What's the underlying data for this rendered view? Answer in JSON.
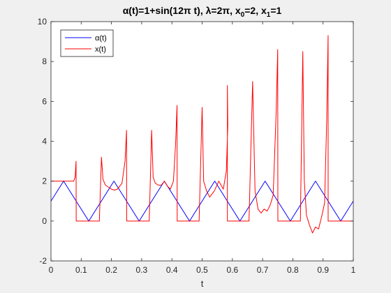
{
  "chart_data": {
    "type": "line",
    "title_parts": [
      {
        "text": "α",
        "italic": false
      },
      {
        "text": "(t)=1+sin(12",
        "italic": false
      },
      {
        "text": "π",
        "italic": false
      },
      {
        "text": " t), ",
        "italic": false
      },
      {
        "text": "λ",
        "italic": false
      },
      {
        "text": "=2",
        "italic": false
      },
      {
        "text": "π",
        "italic": false
      },
      {
        "text": ", x",
        "italic": false
      },
      {
        "text": "0",
        "sub": true
      },
      {
        "text": "=2, x",
        "italic": false
      },
      {
        "text": "1",
        "sub": true
      },
      {
        "text": "=1",
        "italic": false
      }
    ],
    "xlabel": "t",
    "ylabel": "",
    "xlim": [
      0,
      1
    ],
    "ylim": [
      -2,
      10
    ],
    "x_ticks": [
      0,
      0.1,
      0.2,
      0.3,
      0.4,
      0.5,
      0.6,
      0.7,
      0.8,
      0.9,
      1
    ],
    "x_tick_labels": [
      "0",
      "0.1",
      "0.2",
      "0.3",
      "0.4",
      "0.5",
      "0.6",
      "0.7",
      "0.8",
      "0.9",
      "1"
    ],
    "y_ticks": [
      -2,
      0,
      2,
      4,
      6,
      8,
      10
    ],
    "y_tick_labels": [
      "-2",
      "0",
      "2",
      "4",
      "6",
      "8",
      "10"
    ],
    "grid": false,
    "legend_placement": "top-left",
    "series": [
      {
        "name": "α(t)",
        "color": "#0000ff",
        "x": [
          0,
          0.0417,
          0.0833,
          0.125,
          0.1667,
          0.2083,
          0.25,
          0.2917,
          0.3333,
          0.375,
          0.4167,
          0.4583,
          0.5,
          0.5417,
          0.5833,
          0.625,
          0.6667,
          0.7083,
          0.75,
          0.7917,
          0.8333,
          0.875,
          0.9167,
          0.9583,
          1
        ],
        "y": [
          1,
          2,
          1,
          0,
          1,
          2,
          1,
          0,
          1,
          2,
          1,
          0,
          1,
          2,
          1,
          0,
          1,
          2,
          1,
          0,
          1,
          2,
          1,
          0,
          1
        ]
      },
      {
        "name": "x(t)",
        "color": "#ff0000",
        "x": [
          0,
          0.075,
          0.08,
          0.083,
          0.0835,
          0.09,
          0.125,
          0.16,
          0.167,
          0.172,
          0.18,
          0.19,
          0.2,
          0.21,
          0.22,
          0.235,
          0.245,
          0.25,
          0.2505,
          0.27,
          0.31,
          0.325,
          0.333,
          0.338,
          0.345,
          0.355,
          0.365,
          0.375,
          0.385,
          0.395,
          0.405,
          0.412,
          0.417,
          0.4175,
          0.45,
          0.49,
          0.5,
          0.505,
          0.515,
          0.525,
          0.54,
          0.555,
          0.57,
          0.58,
          0.585,
          0.5835,
          0.5836,
          0.6,
          0.64,
          0.655,
          0.667,
          0.675,
          0.685,
          0.695,
          0.705,
          0.715,
          0.725,
          0.735,
          0.745,
          0.75,
          0.7505,
          0.8,
          0.825,
          0.833,
          0.838,
          0.845,
          0.855,
          0.865,
          0.875,
          0.885,
          0.895,
          0.905,
          0.912,
          0.9167,
          0.9168,
          1
        ],
        "y": [
          2,
          2,
          2.2,
          3,
          0,
          0,
          0,
          0,
          3.2,
          2.1,
          1.8,
          1.7,
          1.6,
          1.55,
          1.6,
          1.9,
          3.0,
          4.55,
          0,
          0,
          0,
          0,
          4.55,
          2.2,
          1.9,
          1.8,
          1.8,
          2.0,
          1.75,
          1.6,
          2.0,
          3.8,
          5.8,
          0,
          0,
          0,
          5.7,
          2.0,
          1.5,
          1.2,
          1.5,
          2.0,
          1.6,
          2.5,
          4.8,
          6.8,
          0,
          0,
          0,
          0,
          7.0,
          1.5,
          0.6,
          0.4,
          0.6,
          0.5,
          0.8,
          1.3,
          5.5,
          8.6,
          0,
          0,
          0,
          8.5,
          2.0,
          0.3,
          -0.2,
          -0.6,
          -0.3,
          -0.4,
          0.2,
          0.9,
          5.0,
          9.3,
          0,
          0
        ]
      }
    ]
  }
}
